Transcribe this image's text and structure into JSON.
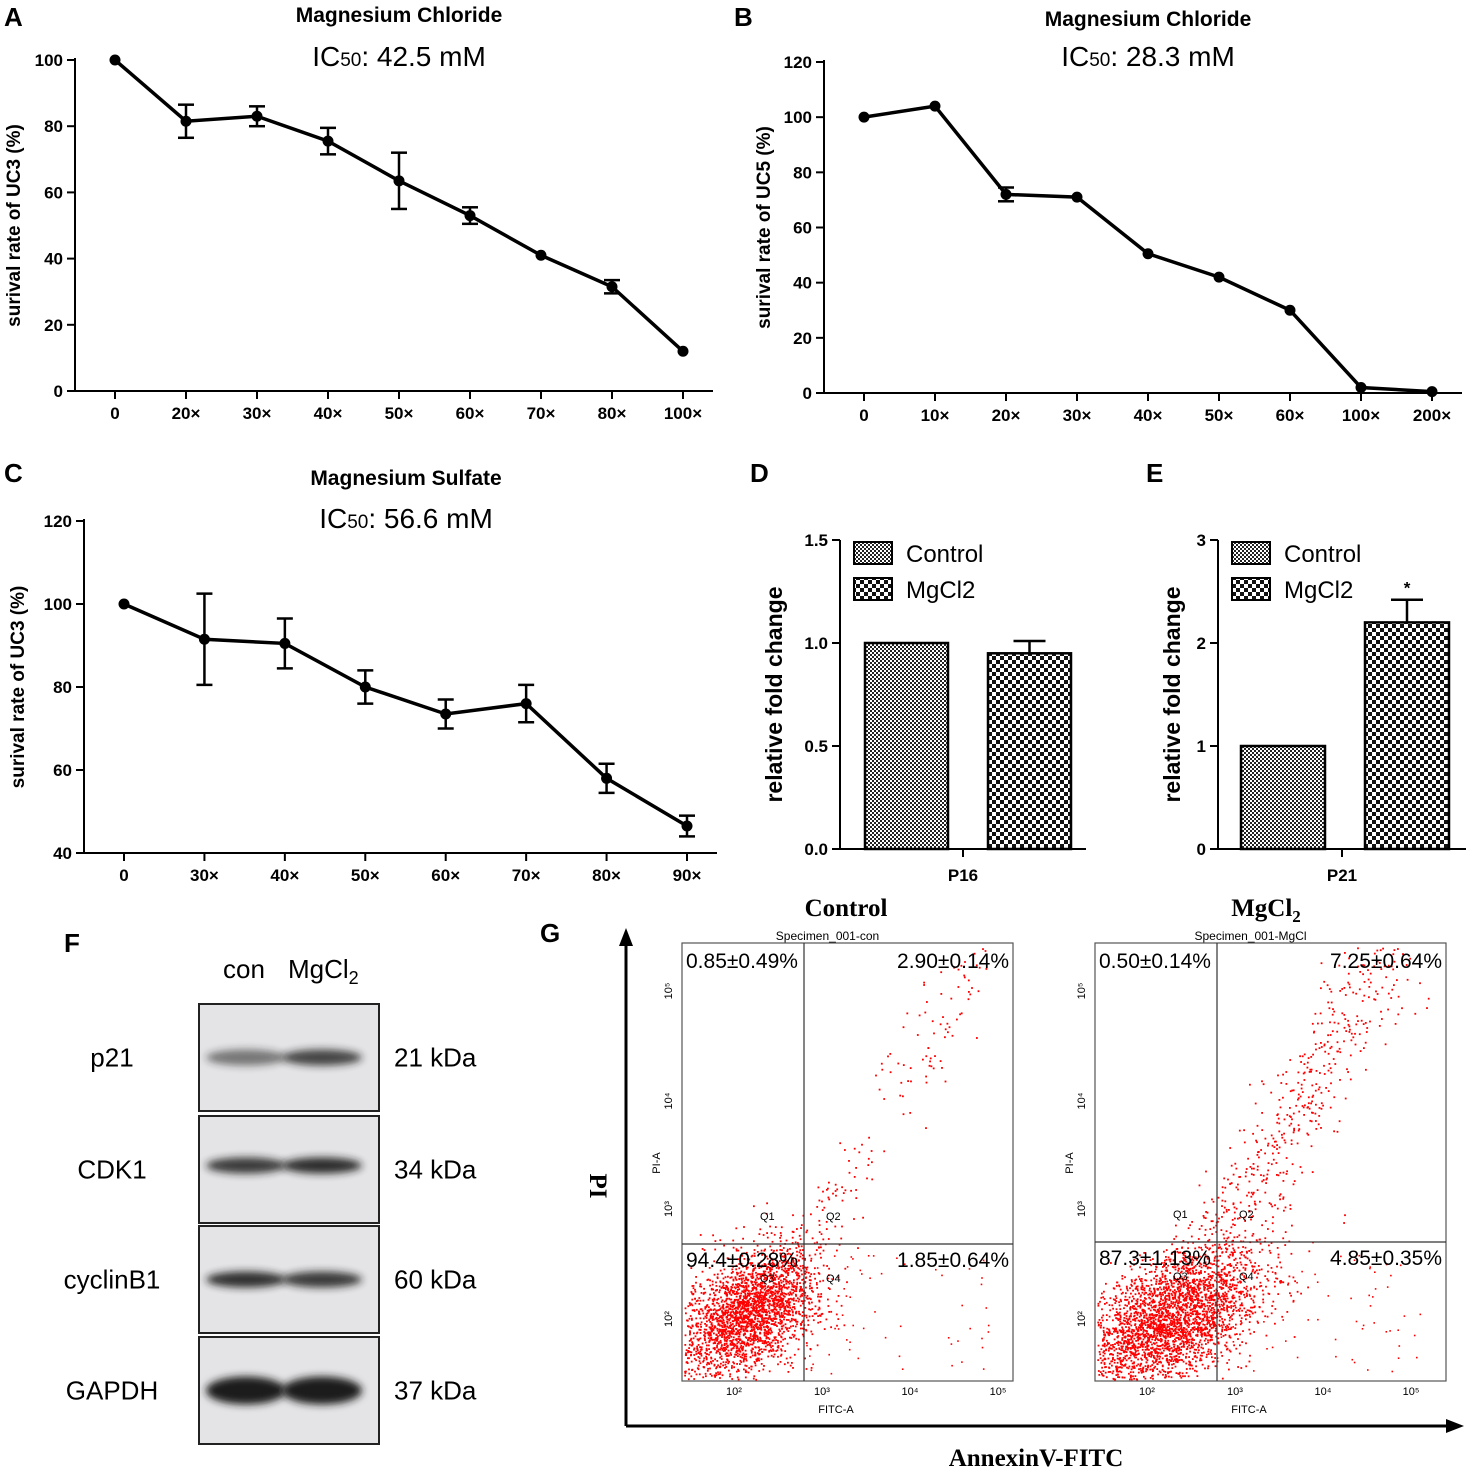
{
  "panel_labels": [
    "A",
    "B",
    "C",
    "D",
    "E",
    "F",
    "G"
  ],
  "colors": {
    "line": "#000000",
    "scatter": "#ff0000",
    "band": "#1a1a1a",
    "blot_bg": "#e4e4e6"
  },
  "chart_data": [
    {
      "id": "A",
      "type": "line",
      "title": "Magnesium Chloride",
      "ic50_prefix": "IC",
      "ic50_sub": "50",
      "ic50_value": ": 42.5 mM",
      "ylabel": "surival rate of UC3 (%)",
      "categories": [
        "0",
        "20×",
        "30×",
        "40×",
        "50×",
        "60×",
        "70×",
        "80×",
        "100×"
      ],
      "values": [
        100,
        81.5,
        83,
        75.5,
        63.5,
        53,
        41,
        31.5,
        12
      ],
      "errors": [
        0,
        5,
        3,
        4,
        8.5,
        2.5,
        0,
        2,
        0
      ],
      "ylim": [
        0,
        100
      ],
      "yticks": [
        0,
        20,
        40,
        60,
        80,
        100
      ]
    },
    {
      "id": "B",
      "type": "line",
      "title": "Magnesium Chloride",
      "ic50_prefix": "IC",
      "ic50_sub": "50",
      "ic50_value": ": 28.3 mM",
      "ylabel": "surival rate of UC5 (%)",
      "categories": [
        "0",
        "10×",
        "20×",
        "30×",
        "40×",
        "50×",
        "60×",
        "100×",
        "200×"
      ],
      "values": [
        100,
        104,
        72,
        71,
        50.5,
        42,
        30,
        2,
        0.5
      ],
      "errors": [
        0,
        0,
        2.5,
        0,
        0,
        0,
        0,
        0,
        0
      ],
      "ylim": [
        0,
        120
      ],
      "yticks": [
        0,
        20,
        40,
        60,
        80,
        100,
        120
      ]
    },
    {
      "id": "C",
      "type": "line",
      "title": "Magnesium Sulfate",
      "ic50_prefix": "IC",
      "ic50_sub": "50",
      "ic50_value": ": 56.6 mM",
      "ylabel": "surival rate of UC3 (%)",
      "categories": [
        "0",
        "30×",
        "40×",
        "50×",
        "60×",
        "70×",
        "80×",
        "90×"
      ],
      "values": [
        100,
        91.5,
        90.5,
        80,
        73.5,
        76,
        58,
        46.5
      ],
      "errors": [
        0,
        11,
        6,
        4,
        3.5,
        4.5,
        3.5,
        2.5
      ],
      "ylim": [
        40,
        120
      ],
      "yticks": [
        40,
        60,
        80,
        100,
        120
      ]
    },
    {
      "id": "D",
      "type": "bar",
      "ylabel": "relative fold change",
      "categories": [
        "P16"
      ],
      "series": [
        {
          "name": "Control",
          "values": [
            1.0
          ],
          "errors": [
            0
          ]
        },
        {
          "name": "MgCl2",
          "values": [
            0.95
          ],
          "errors": [
            0.06
          ]
        }
      ],
      "ylim": [
        0,
        1.5
      ],
      "yticks": [
        "0.0",
        "0.5",
        "1.0",
        "1.5"
      ],
      "annotation": ""
    },
    {
      "id": "E",
      "type": "bar",
      "ylabel": "relative fold change",
      "categories": [
        "P21"
      ],
      "series": [
        {
          "name": "Control",
          "values": [
            1.0
          ],
          "errors": [
            0
          ]
        },
        {
          "name": "MgCl2",
          "values": [
            2.2
          ],
          "errors": [
            0.22
          ]
        }
      ],
      "ylim": [
        0,
        3
      ],
      "yticks": [
        "0",
        "1",
        "2",
        "3"
      ],
      "annotation": "*"
    }
  ],
  "western_blot": {
    "lanes": [
      "con",
      "MgCl"
    ],
    "lane2_sub": "2",
    "rows": [
      {
        "protein": "p21",
        "size": "21 kDa",
        "intensity": [
          0.55,
          0.8
        ]
      },
      {
        "protein": "CDK1",
        "size": "34 kDa",
        "intensity": [
          0.85,
          0.92
        ]
      },
      {
        "protein": "cyclinB1",
        "size": "60 kDa",
        "intensity": [
          0.9,
          0.85
        ]
      },
      {
        "protein": "GAPDH",
        "size": "37 kDa",
        "intensity": [
          1.0,
          1.0
        ]
      }
    ]
  },
  "flow_cytometry": {
    "x_axis_label": "AnnexinV-FITC",
    "y_axis_label": "PI",
    "plot_x_label": "FITC-A",
    "plot_y_label": "PI-A",
    "quadrant_names": [
      "Q1",
      "Q2",
      "Q3",
      "Q4"
    ],
    "decades_x": [
      "10²",
      "10³",
      "10⁴",
      "10⁵"
    ],
    "decades_y": [
      "10²",
      "10³",
      "10⁴",
      "10⁵"
    ],
    "plots": [
      {
        "title": "Control",
        "title_sub": "",
        "specimen": "Specimen_001-con",
        "q1": "0.85±0.49%",
        "q2": "2.90±0.14%",
        "q3": "94.4±0.28%",
        "q4": "1.85±0.64%"
      },
      {
        "title": "MgCl",
        "title_sub": "2",
        "specimen": "Specimen_001-MgCl",
        "q1": "0.50±0.14%",
        "q2": "7.25±0.64%",
        "q3": "87.3±1.13%",
        "q4": "4.85±0.35%"
      }
    ]
  }
}
